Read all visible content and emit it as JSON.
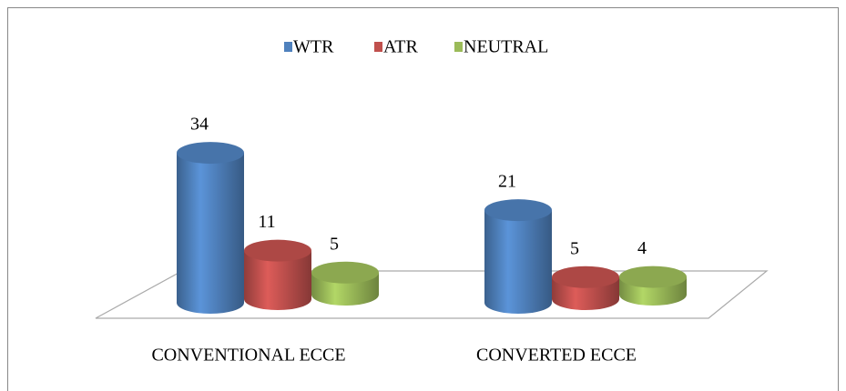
{
  "chart_data": {
    "type": "bar3d",
    "categories": [
      "CONVENTIONAL ECCE",
      "CONVERTED ECCE"
    ],
    "series": [
      {
        "name": "WTR",
        "color": "#4f81bd",
        "values": [
          34,
          21
        ]
      },
      {
        "name": "ATR",
        "color": "#c0504d",
        "values": [
          11,
          5
        ]
      },
      {
        "name": "NEUTRAL",
        "color": "#9bbb59",
        "values": [
          5,
          4
        ]
      }
    ],
    "legend": "top"
  }
}
